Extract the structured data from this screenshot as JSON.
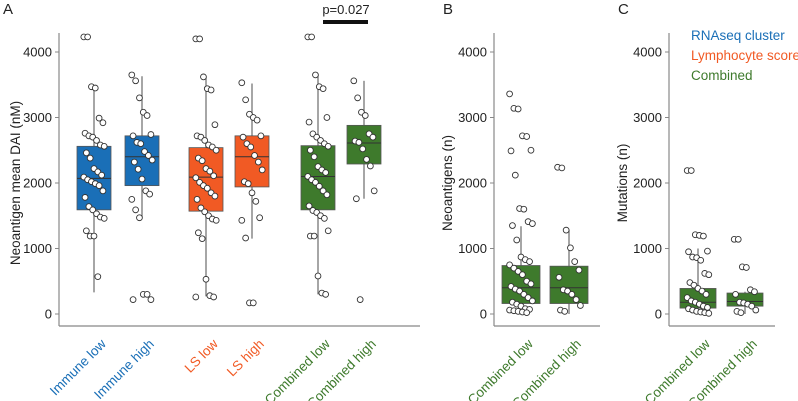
{
  "colors": {
    "blue": "#1a6fb7",
    "orange": "#f15a24",
    "green": "#3e7a2c"
  },
  "chart_data": [
    {
      "type": "box",
      "panel_label": "A",
      "ylabel": "Neoantigen mean DAI (nM)",
      "ylim": [
        0,
        4300
      ],
      "yticks": [
        0,
        1000,
        2000,
        3000,
        4000
      ],
      "annotation": "p=0.027",
      "annotation_p": "p",
      "annotation_val": "=0.027",
      "annotation_groups": [
        "Combined low",
        "Combined high"
      ],
      "groups": [
        {
          "name": "Immune low",
          "color": "blue",
          "min": 330,
          "q1": 1590,
          "median": 2070,
          "q3": 2560,
          "max": 3470,
          "points": [
            4230,
            4230,
            3470,
            3450,
            2990,
            2920,
            2760,
            2720,
            2700,
            2650,
            2580,
            2560,
            2460,
            2380,
            2220,
            2170,
            2120,
            2090,
            2050,
            2020,
            1990,
            1960,
            1880,
            1780,
            1640,
            1590,
            1530,
            1480,
            1460,
            1270,
            1190,
            1190,
            570
          ]
        },
        {
          "name": "Immune high",
          "color": "blue",
          "min": 1480,
          "q1": 1960,
          "median": 2400,
          "q3": 2720,
          "max": 3630,
          "points": [
            3650,
            3560,
            3300,
            3080,
            3030,
            2740,
            2720,
            2620,
            2600,
            2480,
            2420,
            2350,
            2320,
            2210,
            2060,
            1880,
            1830,
            1750,
            1590,
            1470,
            300,
            300,
            220,
            220
          ]
        },
        {
          "name": "LS low",
          "color": "orange",
          "min": 270,
          "q1": 1570,
          "median": 2090,
          "q3": 2540,
          "max": 3610,
          "points": [
            4200,
            4200,
            3620,
            3440,
            3420,
            2890,
            2720,
            2700,
            2650,
            2580,
            2550,
            2500,
            2380,
            2340,
            2220,
            2180,
            2110,
            2080,
            2010,
            1960,
            1920,
            1850,
            1800,
            1750,
            1620,
            1560,
            1500,
            1450,
            1430,
            1240,
            1150,
            530,
            280,
            260,
            260
          ]
        },
        {
          "name": "LS high",
          "color": "orange",
          "min": 1150,
          "q1": 1940,
          "median": 2400,
          "q3": 2720,
          "max": 3520,
          "points": [
            3530,
            3270,
            3050,
            3000,
            2960,
            2720,
            2700,
            2600,
            2550,
            2420,
            2320,
            2200,
            2020,
            1990,
            1850,
            1720,
            1470,
            1430,
            1160,
            170,
            170
          ]
        },
        {
          "name": "Combined low",
          "color": "green",
          "min": 300,
          "q1": 1590,
          "median": 2100,
          "q3": 2570,
          "max": 3650,
          "points": [
            4230,
            4230,
            3650,
            3470,
            3440,
            3000,
            2930,
            2750,
            2700,
            2650,
            2600,
            2560,
            2500,
            2400,
            2250,
            2200,
            2160,
            2100,
            2050,
            2010,
            1950,
            1880,
            1820,
            1650,
            1580,
            1550,
            1500,
            1460,
            1270,
            1190,
            1190,
            580,
            320,
            300
          ]
        },
        {
          "name": "Combined high",
          "color": "green",
          "min": 1760,
          "q1": 2290,
          "median": 2610,
          "q3": 2880,
          "max": 3560,
          "points": [
            3560,
            3300,
            3080,
            3030,
            2750,
            2700,
            2640,
            2620,
            2520,
            2360,
            2260,
            1880,
            1760,
            220
          ]
        }
      ]
    },
    {
      "type": "box",
      "panel_label": "B",
      "ylabel": "Neoantigens (n)",
      "ylim": [
        0,
        4300
      ],
      "yticks": [
        0,
        1000,
        2000,
        3000,
        4000
      ],
      "groups": [
        {
          "name": "Combined low",
          "color": "green",
          "min": 0,
          "q1": 160,
          "median": 400,
          "q3": 740,
          "max": 1340,
          "points": [
            3360,
            3140,
            3130,
            2720,
            2710,
            2500,
            2490,
            2120,
            1610,
            1600,
            1410,
            1380,
            1350,
            1130,
            870,
            830,
            800,
            750,
            700,
            650,
            600,
            500,
            460,
            420,
            380,
            350,
            300,
            250,
            200,
            180,
            150,
            120,
            80,
            70,
            60,
            50,
            40,
            30,
            20
          ]
        },
        {
          "name": "Combined high",
          "color": "green",
          "min": 0,
          "q1": 160,
          "median": 400,
          "q3": 730,
          "max": 1280,
          "points": [
            2240,
            2230,
            1280,
            1010,
            800,
            670,
            560,
            370,
            350,
            300,
            220,
            130,
            60,
            40
          ]
        }
      ]
    },
    {
      "type": "box",
      "panel_label": "C",
      "ylabel": "Mutations (n)",
      "ylim": [
        0,
        4300
      ],
      "yticks": [
        0,
        1000,
        2000,
        3000,
        4000
      ],
      "legend": [
        {
          "label": "RNAseq cluster",
          "color": "blue"
        },
        {
          "label": "Lymphocyte score",
          "color": "orange"
        },
        {
          "label": "Combined",
          "color": "green"
        }
      ],
      "groups": [
        {
          "name": "Combined low",
          "color": "green",
          "min": 0,
          "q1": 90,
          "median": 180,
          "q3": 390,
          "max": 1000,
          "points": [
            2190,
            2190,
            1210,
            1200,
            1190,
            960,
            950,
            870,
            860,
            820,
            620,
            600,
            480,
            440,
            390,
            350,
            300,
            250,
            200,
            180,
            150,
            120,
            100,
            80,
            60,
            40,
            30,
            20,
            10
          ]
        },
        {
          "name": "Combined high",
          "color": "green",
          "min": 0,
          "q1": 120,
          "median": 190,
          "q3": 320,
          "max": 340,
          "points": [
            1140,
            1140,
            720,
            710,
            370,
            340,
            300,
            180,
            170,
            150,
            120,
            60,
            40,
            20
          ]
        }
      ]
    }
  ]
}
